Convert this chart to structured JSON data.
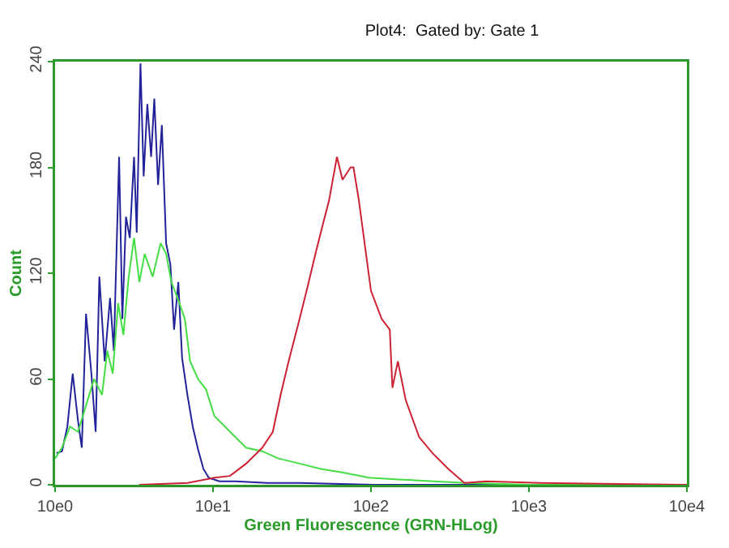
{
  "chart_data": {
    "type": "line",
    "title": "Plot4:  Gated by: Gate 1",
    "xlabel": "Green Fluorescence (GRN-HLog)",
    "ylabel": "Count",
    "log": "x",
    "xlim": [
      10,
      100000
    ],
    "xticks": [
      {
        "value": 10,
        "label": "10e0"
      },
      {
        "value": 100,
        "label": "10e1"
      },
      {
        "value": 1000,
        "label": "10e2"
      },
      {
        "value": 10000,
        "label": "10e3"
      },
      {
        "value": 100000,
        "label": "10e4"
      }
    ],
    "ylim": [
      0,
      240
    ],
    "yticks": [
      0,
      60,
      120,
      180,
      240
    ],
    "series": [
      {
        "color": "#22229a",
        "x": [
          10.2,
          11.06,
          11.96,
          12.93,
          13.98,
          14.76,
          15.7,
          16.98,
          18.07,
          19.07,
          20.61,
          22.29,
          23.54,
          25.43,
          26.66,
          28.12,
          29.72,
          31.62,
          32.87,
          34.72,
          36.37,
          38.38,
          40.55,
          42.49,
          44.87,
          47.42,
          50.46,
          53.7,
          56.67,
          60.29,
          63.68,
          68.83,
          74.41,
          80.42,
          86.94,
          93.98,
          109.8,
          138.6,
          221,
          353,
          1048,
          10000,
          100000
        ],
        "values": [
          18,
          19,
          33,
          63,
          36,
          21,
          97,
          63,
          30,
          118,
          70,
          106,
          76,
          186,
          94,
          152,
          140,
          186,
          143,
          239,
          175,
          216,
          186,
          219,
          170,
          204,
          137,
          125,
          88,
          115,
          72,
          51,
          33,
          20,
          9,
          4,
          2,
          2,
          1,
          1,
          0,
          0,
          0
        ]
      },
      {
        "color": "#44dd44",
        "x": [
          10,
          11.06,
          12.43,
          13.98,
          15.7,
          17.64,
          19.82,
          21.42,
          23.18,
          25.05,
          27.07,
          29.25,
          31.62,
          34.17,
          36.93,
          41.48,
          46.6,
          50.46,
          54.5,
          61.3,
          66.3,
          71.6,
          80.4,
          90.4,
          102,
          119,
          138.6,
          162,
          205,
          258,
          353,
          483,
          657,
          970,
          1500,
          2500,
          4000,
          10000,
          100000
        ],
        "values": [
          15,
          21,
          33,
          30,
          45,
          60,
          51,
          76,
          63,
          103,
          85,
          118,
          140,
          115,
          131,
          118,
          137,
          131,
          115,
          103,
          94,
          70,
          60,
          54,
          39,
          33,
          27,
          21,
          19,
          15,
          12,
          9,
          7,
          4,
          3,
          2,
          1,
          0,
          0
        ]
      },
      {
        "color": "#cc2233",
        "x": [
          34,
          69,
          102,
          128,
          162,
          205,
          239,
          268,
          301,
          353,
          396,
          445,
          500,
          542,
          609,
          660,
          743,
          775,
          836,
          1000,
          1170,
          1315,
          1367,
          1480,
          1660,
          2020,
          2450,
          3090,
          3900,
          5370,
          11750,
          100000
        ],
        "values": [
          0,
          1,
          4,
          5,
          12,
          21,
          30,
          51,
          70,
          94,
          112,
          131,
          149,
          161,
          186,
          173,
          180,
          180,
          162,
          110,
          94,
          88,
          55,
          70,
          48,
          27,
          18,
          9,
          1,
          2,
          1,
          0
        ]
      }
    ]
  }
}
